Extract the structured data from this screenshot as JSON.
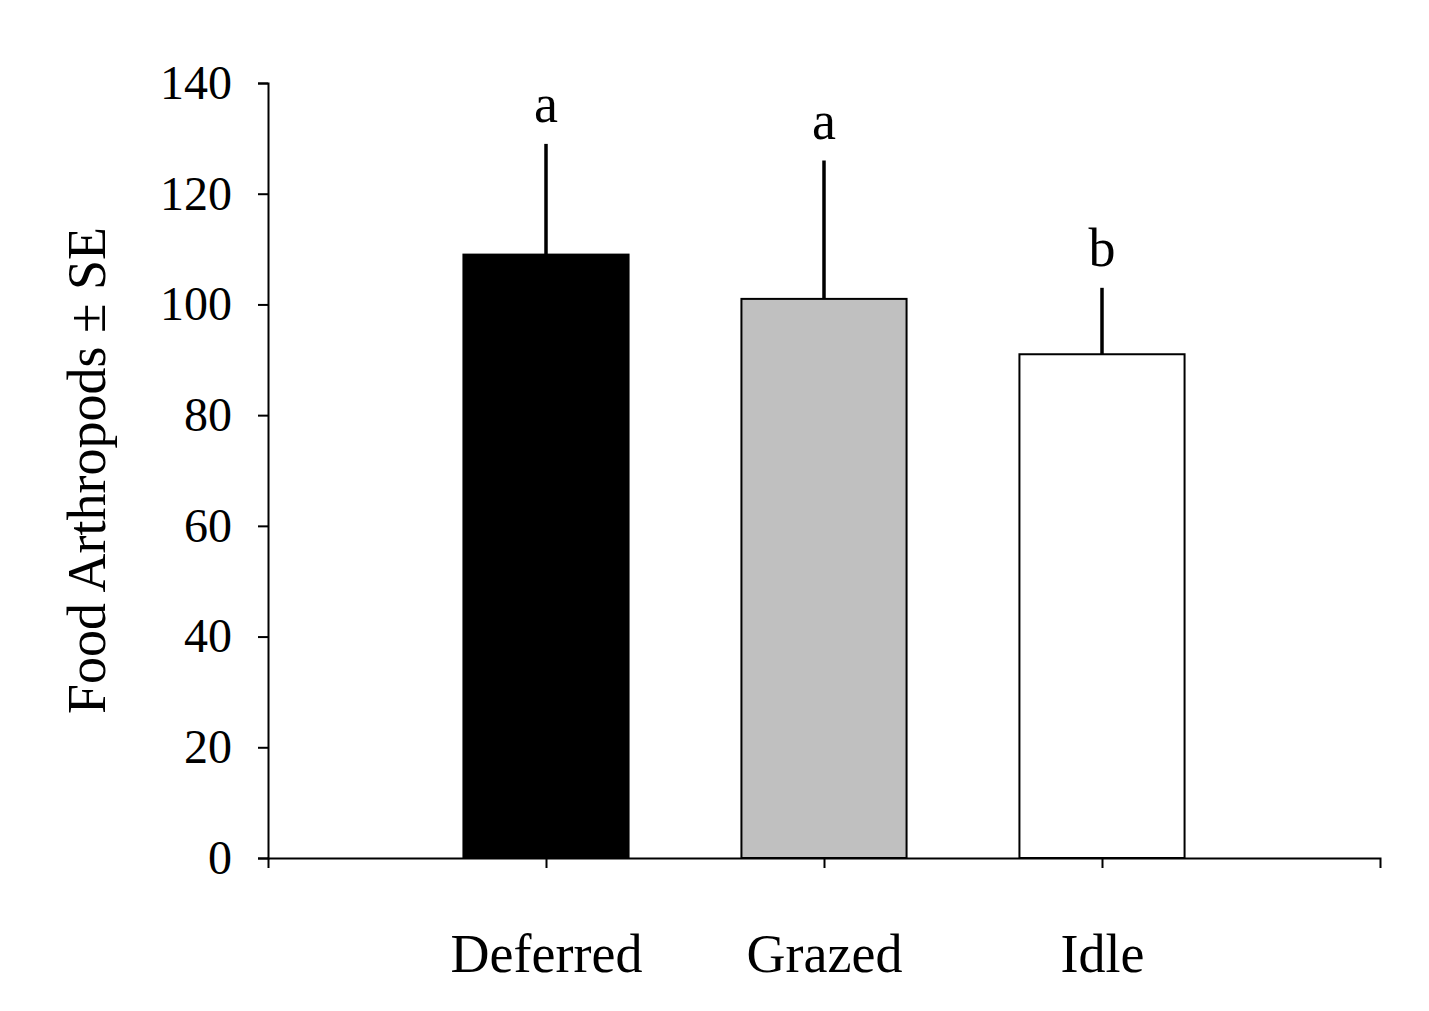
{
  "chart_data": {
    "type": "bar",
    "y_label": "Food Arthropods ± SE",
    "categories": [
      "Deferred",
      "Grazed",
      "Idle"
    ],
    "values": [
      109,
      101,
      91
    ],
    "errors": [
      20,
      25,
      12
    ],
    "annotations": [
      "a",
      "a",
      "b"
    ],
    "colors": [
      "#000000",
      "#c0c0c0",
      "#ffffff"
    ],
    "ylim": [
      0,
      140
    ],
    "yticks": [
      0,
      20,
      40,
      60,
      80,
      100,
      120,
      140
    ],
    "grid": false
  }
}
